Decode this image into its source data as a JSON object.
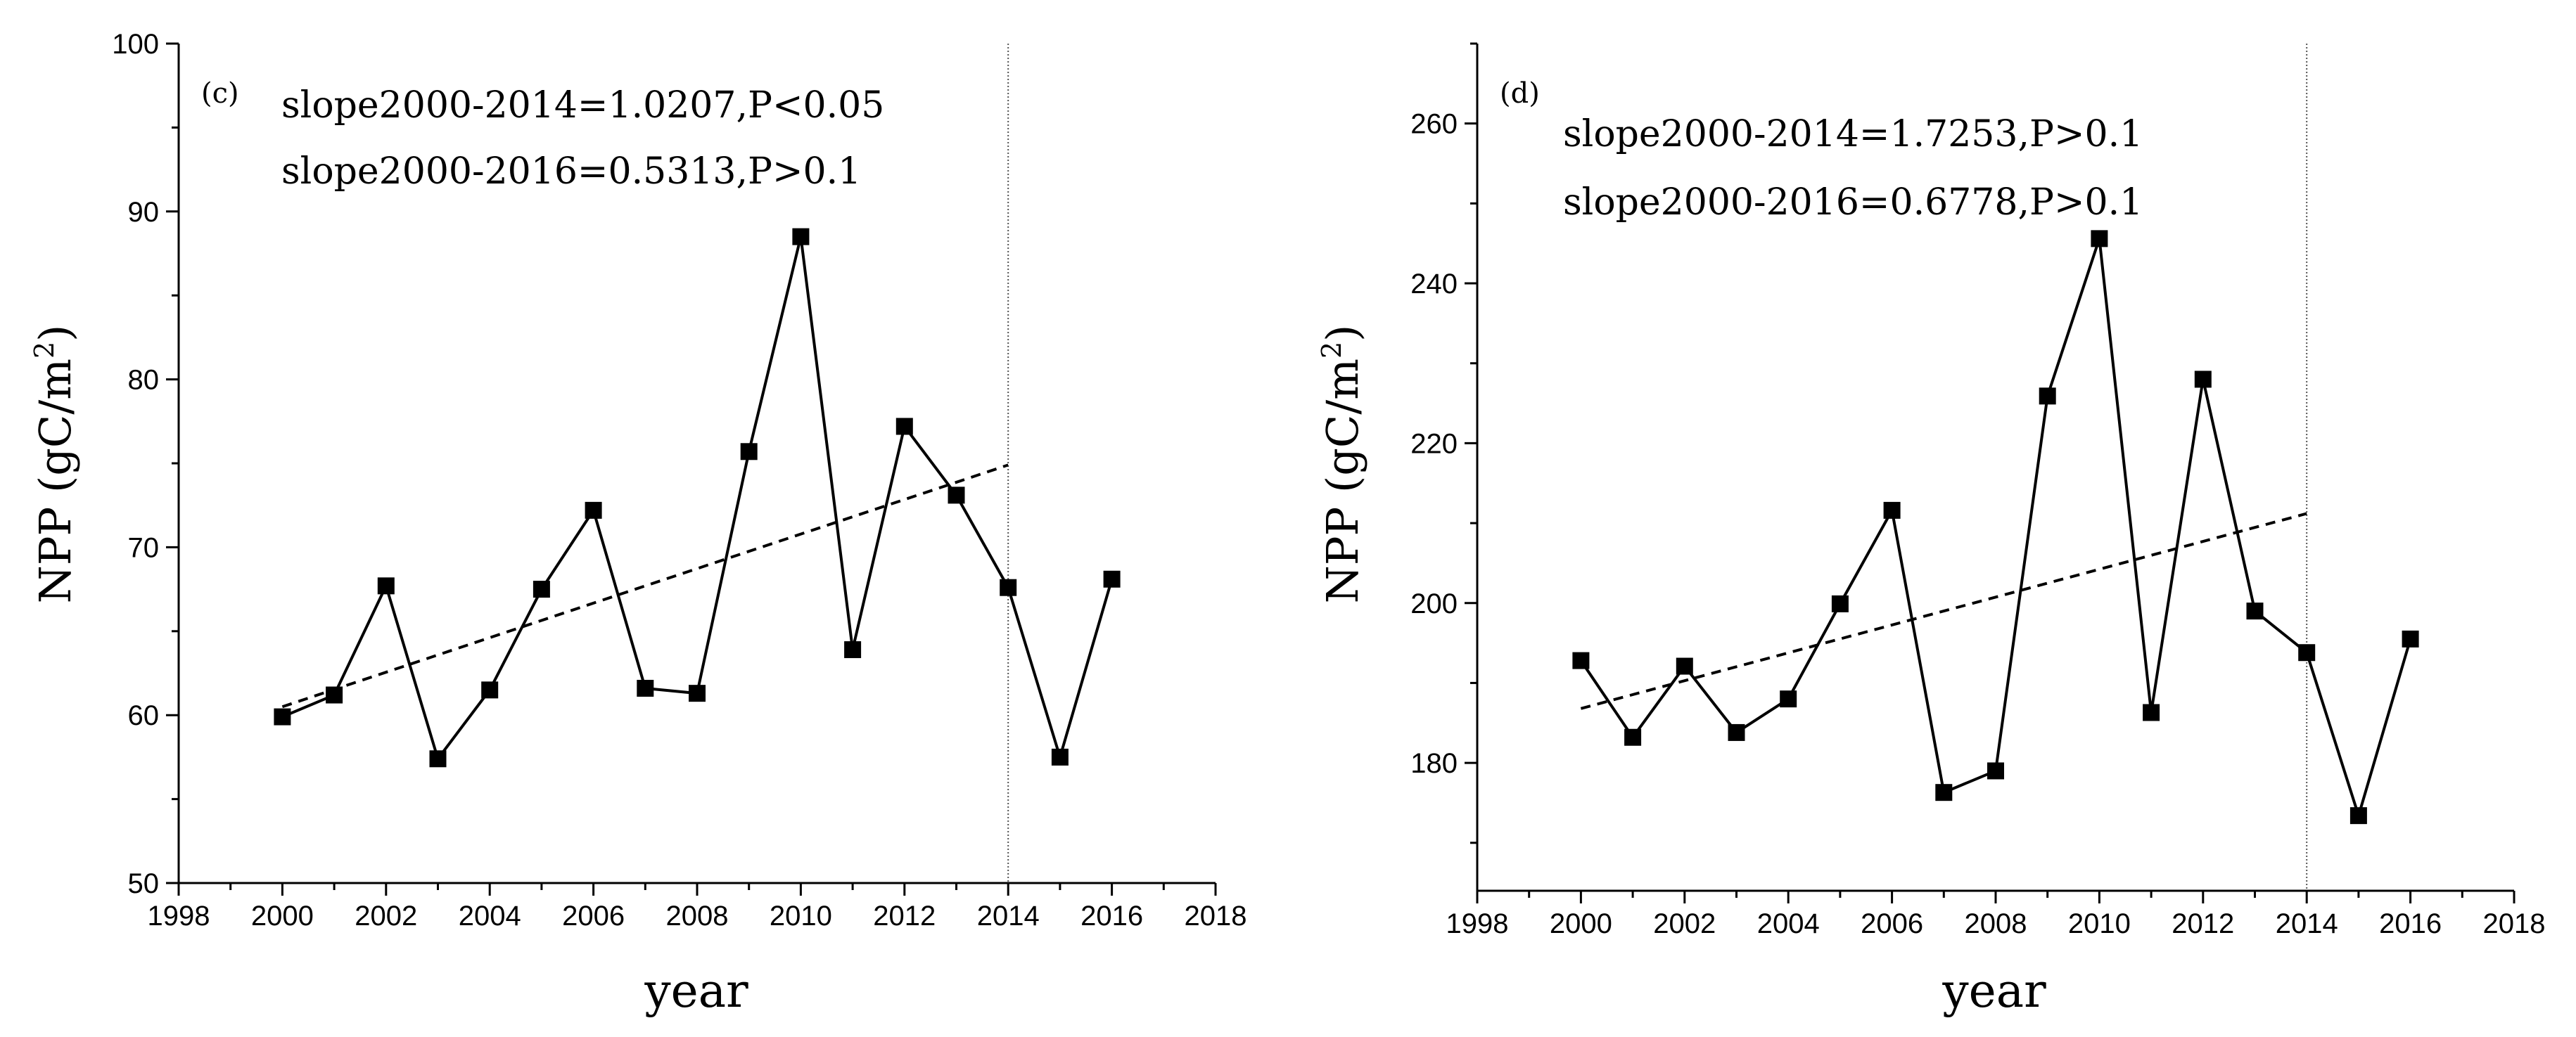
{
  "chart_data": [
    {
      "type": "line",
      "panel_label": "(c)",
      "title": "",
      "xlabel": "year",
      "ylabel_main": "NPP (gC/m",
      "ylabel_sup": "2",
      "ylabel_tail": ")",
      "xlim": [
        1998,
        2018
      ],
      "ylim": [
        50,
        100
      ],
      "x_ticks": [
        1998,
        2000,
        2002,
        2004,
        2006,
        2008,
        2010,
        2012,
        2014,
        2016,
        2018
      ],
      "x_tick_labels": [
        "1998",
        "2000",
        "2002",
        "2004",
        "2006",
        "2008",
        "2010",
        "2012",
        "2014",
        "2016",
        "2018"
      ],
      "y_ticks": [
        50,
        60,
        70,
        80,
        90,
        100
      ],
      "y_tick_labels": [
        "50",
        "60",
        "70",
        "80",
        "90",
        "100"
      ],
      "x": [
        2000,
        2001,
        2002,
        2003,
        2004,
        2005,
        2006,
        2007,
        2008,
        2009,
        2010,
        2011,
        2012,
        2013,
        2014,
        2015,
        2016
      ],
      "series": [
        {
          "name": "NPP",
          "values": [
            59.9,
            61.2,
            67.7,
            57.4,
            61.5,
            67.5,
            72.2,
            61.6,
            61.3,
            75.7,
            88.5,
            63.9,
            77.2,
            73.1,
            67.6,
            57.5,
            68.1
          ]
        }
      ],
      "trend": {
        "x": [
          2000,
          2014
        ],
        "y": [
          60.5,
          74.9
        ]
      },
      "vertical_line_x": 2014,
      "annotations": [
        "slope2000-2014=1.0207,P<0.05",
        "slope2000-2016=0.5313,P>0.1"
      ]
    },
    {
      "type": "line",
      "panel_label": "(d)",
      "title": "",
      "xlabel": "year",
      "ylabel_main": "NPP (gC/m",
      "ylabel_sup": "2",
      "ylabel_tail": ")",
      "xlim": [
        1998,
        2018
      ],
      "ylim": [
        164,
        270
      ],
      "x_ticks": [
        1998,
        2000,
        2002,
        2004,
        2006,
        2008,
        2010,
        2012,
        2014,
        2016,
        2018
      ],
      "x_tick_labels": [
        "1998",
        "2000",
        "2002",
        "2004",
        "2006",
        "2008",
        "2010",
        "2012",
        "2014",
        "2016",
        "2018"
      ],
      "y_ticks": [
        180,
        200,
        220,
        240,
        260
      ],
      "y_tick_labels": [
        "180",
        "200",
        "220",
        "240",
        "260"
      ],
      "x": [
        2000,
        2001,
        2002,
        2003,
        2004,
        2005,
        2006,
        2007,
        2008,
        2009,
        2010,
        2011,
        2012,
        2013,
        2014,
        2015,
        2016
      ],
      "series": [
        {
          "name": "NPP",
          "values": [
            192.8,
            183.2,
            192.1,
            183.8,
            188.0,
            199.9,
            211.6,
            176.3,
            179.0,
            225.9,
            245.6,
            186.3,
            228.0,
            199.0,
            193.8,
            173.4,
            195.5
          ]
        }
      ],
      "trend": {
        "x": [
          2000,
          2014
        ],
        "y": [
          186.8,
          211.2
        ]
      },
      "vertical_line_x": 2014,
      "annotations": [
        "slope2000-2014=1.7253,P>0.1",
        "slope2000-2016=0.6778,P>0.1"
      ]
    }
  ]
}
